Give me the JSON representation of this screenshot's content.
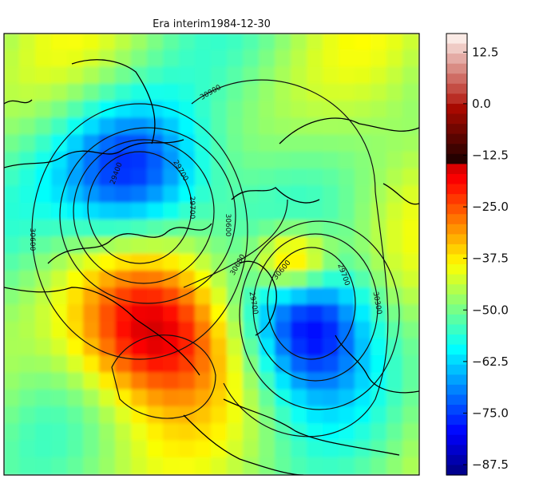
{
  "chart_data": {
    "type": "heatmap",
    "title": "Era interim1984-12-30",
    "projection": "north-polar",
    "fill_field": {
      "colormap": "jet",
      "vmin": -90,
      "vmax": 17,
      "colorbar_ticks": [
        12.5,
        0.0,
        -12.5,
        -25.0,
        -37.5,
        -50.0,
        -62.5,
        -75.0,
        -87.5
      ],
      "colorbar_tick_labels": [
        "12.5",
        "0.0",
        "−12.5",
        "−25.0",
        "−37.5",
        "−50.0",
        "−62.5",
        "−75.0",
        "−87.5"
      ],
      "background_level": -47,
      "anomalies": [
        {
          "name": "cold-low-north",
          "center": [
            0.31,
            0.32
          ],
          "radius": [
            0.18,
            0.16
          ],
          "min": -80
        },
        {
          "name": "cold-low-east",
          "center": [
            0.74,
            0.67
          ],
          "radius": [
            0.15,
            0.17
          ],
          "min": -80
        },
        {
          "name": "warm-high-south",
          "center": [
            0.36,
            0.68
          ],
          "radius": [
            0.18,
            0.16
          ],
          "max": -15
        },
        {
          "name": "warm-high-east",
          "center": [
            0.7,
            0.52
          ],
          "radius": [
            0.1,
            0.08
          ],
          "max": -18
        }
      ]
    },
    "contour_labels": [
      "30900",
      "30600",
      "29700",
      "29400",
      "29700",
      "30600",
      "30600",
      "29700",
      "30300",
      "30600",
      "29700"
    ],
    "colorbar": {
      "placement": "right"
    }
  }
}
